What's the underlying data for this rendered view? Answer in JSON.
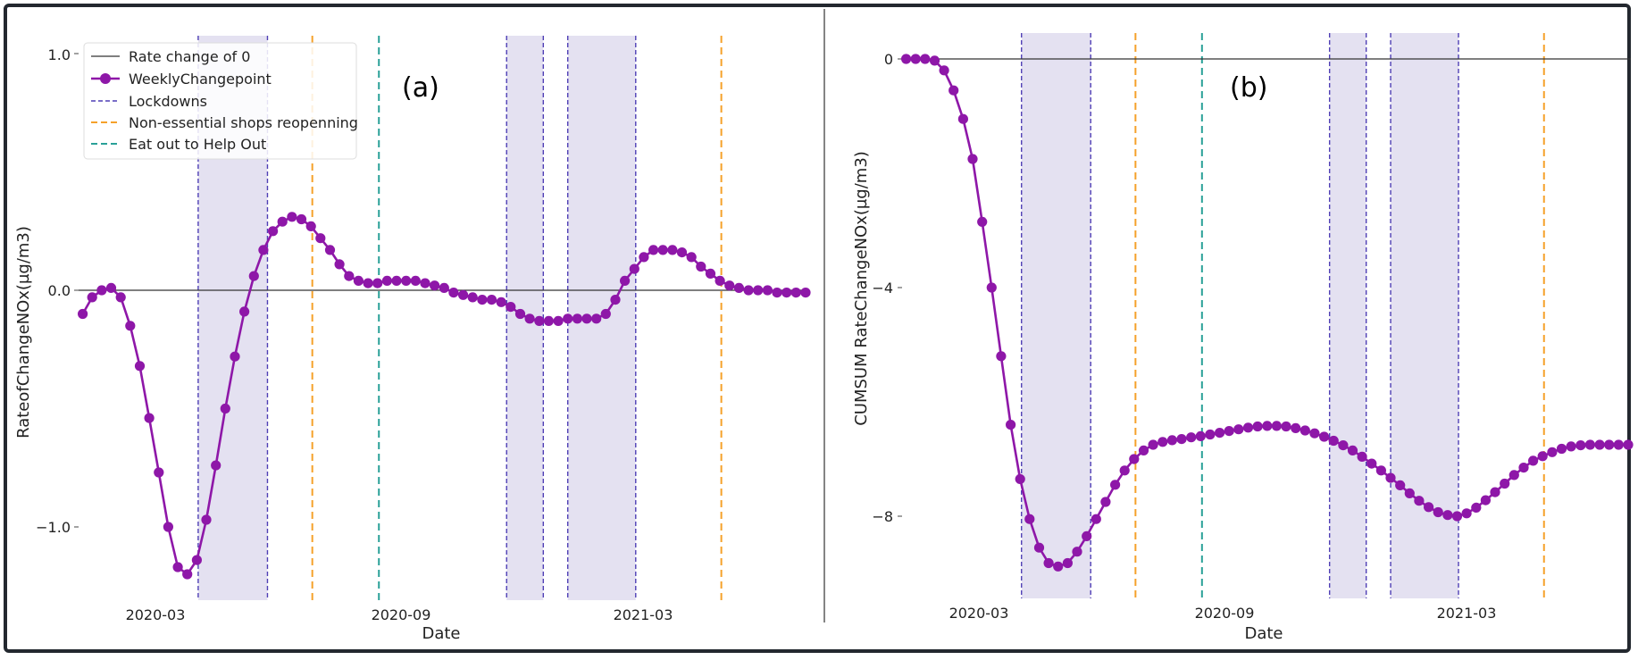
{
  "colors": {
    "series": "#8e17a8",
    "lockdown_line": "#4f3fb5",
    "lockdown_fill": "#e4e1f1",
    "shops_line": "#f5a12a",
    "eat_out_line": "#2aa198",
    "zero_line": "#333333"
  },
  "legend": {
    "items": [
      {
        "label": "Rate change of 0",
        "kind": "solid"
      },
      {
        "label": "WeeklyChangepoint",
        "kind": "marker"
      },
      {
        "label": "Lockdowns",
        "kind": "dash_lockdown"
      },
      {
        "label": "Non-essential shops reopenning",
        "kind": "dash_shops"
      },
      {
        "label": "Eat out to Help Out",
        "kind": "dash_eatout"
      }
    ],
    "placement": "top-left of panel (a)"
  },
  "chart_data": [
    {
      "type": "line",
      "panel_label": "(a)",
      "xlabel": "Date",
      "ylabel": "RateofChangeNOx(µg/m3)",
      "x_ticks": [
        "2020-03",
        "2020-09",
        "2021-03"
      ],
      "y_ticks": [
        "1.0",
        "0.0",
        "−1.0"
      ],
      "y_tick_values": [
        1.0,
        0.0,
        -1.0
      ],
      "xlim": [
        "2019-12-26",
        "2021-06-15"
      ],
      "ylim": [
        -1.3,
        1.05
      ],
      "grid": false,
      "reference_lines": {
        "y": 0
      },
      "lockdowns": [
        [
          "2020-03-23",
          "2020-05-13"
        ],
        [
          "2020-11-05",
          "2020-12-02"
        ],
        [
          "2020-12-20",
          "2021-02-08"
        ]
      ],
      "shops_reopening": [
        "2020-06-15",
        "2021-04-12"
      ],
      "eat_out": [
        "2020-08-03"
      ],
      "series": [
        {
          "name": "WeeklyChangepoint",
          "x": [
            "2019-12-29",
            "2020-01-05",
            "2020-01-12",
            "2020-01-19",
            "2020-01-26",
            "2020-02-02",
            "2020-02-09",
            "2020-02-16",
            "2020-02-23",
            "2020-03-01",
            "2020-03-08",
            "2020-03-15",
            "2020-03-22",
            "2020-03-29",
            "2020-04-05",
            "2020-04-12",
            "2020-04-19",
            "2020-04-26",
            "2020-05-03",
            "2020-05-10",
            "2020-05-17",
            "2020-05-24",
            "2020-05-31",
            "2020-06-07",
            "2020-06-14",
            "2020-06-21",
            "2020-06-28",
            "2020-07-05",
            "2020-07-12",
            "2020-07-19",
            "2020-07-26",
            "2020-08-02",
            "2020-08-09",
            "2020-08-16",
            "2020-08-23",
            "2020-08-30",
            "2020-09-06",
            "2020-09-13",
            "2020-09-20",
            "2020-09-27",
            "2020-10-04",
            "2020-10-11",
            "2020-10-18",
            "2020-10-25",
            "2020-11-01",
            "2020-11-08",
            "2020-11-15",
            "2020-11-22",
            "2020-11-29",
            "2020-12-06",
            "2020-12-13",
            "2020-12-20",
            "2020-12-27",
            "2021-01-03",
            "2021-01-10",
            "2021-01-17",
            "2021-01-24",
            "2021-01-31",
            "2021-02-07",
            "2021-02-14",
            "2021-02-21",
            "2021-02-28",
            "2021-03-07",
            "2021-03-14",
            "2021-03-21",
            "2021-03-28",
            "2021-04-04",
            "2021-04-11",
            "2021-04-18",
            "2021-04-25",
            "2021-05-02",
            "2021-05-09",
            "2021-05-16",
            "2021-05-23",
            "2021-05-30",
            "2021-06-06",
            "2021-06-13"
          ],
          "values": [
            -0.1,
            -0.03,
            0.0,
            0.01,
            -0.03,
            -0.15,
            -0.32,
            -0.54,
            -0.77,
            -1.0,
            -1.17,
            -1.2,
            -1.14,
            -0.97,
            -0.74,
            -0.5,
            -0.28,
            -0.09,
            0.06,
            0.17,
            0.25,
            0.29,
            0.31,
            0.3,
            0.27,
            0.22,
            0.17,
            0.11,
            0.06,
            0.04,
            0.03,
            0.03,
            0.04,
            0.04,
            0.04,
            0.04,
            0.03,
            0.02,
            0.01,
            -0.01,
            -0.02,
            -0.03,
            -0.04,
            -0.04,
            -0.05,
            -0.07,
            -0.1,
            -0.12,
            -0.13,
            -0.13,
            -0.13,
            -0.12,
            -0.12,
            -0.12,
            -0.12,
            -0.1,
            -0.04,
            0.04,
            0.09,
            0.14,
            0.17,
            0.17,
            0.17,
            0.16,
            0.14,
            0.1,
            0.07,
            0.04,
            0.02,
            0.01,
            0.0,
            0.0,
            0.0,
            -0.01,
            -0.01,
            -0.01,
            -0.01
          ]
        }
      ]
    },
    {
      "type": "line",
      "panel_label": "(b)",
      "xlabel": "Date",
      "ylabel": "CUMSUM RateChangeNOx(µg/m3)",
      "x_ticks": [
        "2020-03",
        "2020-09",
        "2021-03"
      ],
      "y_ticks": [
        "0",
        "−4",
        "−8"
      ],
      "y_tick_values": [
        0,
        -4,
        -8
      ],
      "xlim": [
        "2019-12-26",
        "2021-06-15"
      ],
      "ylim": [
        -9.25,
        0.45
      ],
      "grid": false,
      "reference_lines": {
        "y": 0
      },
      "lockdowns": [
        [
          "2020-03-23",
          "2020-05-13"
        ],
        [
          "2020-11-05",
          "2020-12-02"
        ],
        [
          "2020-12-20",
          "2021-02-08"
        ]
      ],
      "shops_reopening": [
        "2020-06-15",
        "2021-04-12"
      ],
      "eat_out": [
        "2020-08-03"
      ],
      "series": [
        {
          "name": "WeeklyChangepoint",
          "x": [
            "2019-12-29",
            "2020-01-05",
            "2020-01-12",
            "2020-01-19",
            "2020-01-26",
            "2020-02-02",
            "2020-02-09",
            "2020-02-16",
            "2020-02-23",
            "2020-03-01",
            "2020-03-08",
            "2020-03-15",
            "2020-03-22",
            "2020-03-29",
            "2020-04-05",
            "2020-04-12",
            "2020-04-19",
            "2020-04-26",
            "2020-05-03",
            "2020-05-10",
            "2020-05-17",
            "2020-05-24",
            "2020-05-31",
            "2020-06-07",
            "2020-06-14",
            "2020-06-21",
            "2020-06-28",
            "2020-07-05",
            "2020-07-12",
            "2020-07-19",
            "2020-07-26",
            "2020-08-02",
            "2020-08-09",
            "2020-08-16",
            "2020-08-23",
            "2020-08-30",
            "2020-09-06",
            "2020-09-13",
            "2020-09-20",
            "2020-09-27",
            "2020-10-04",
            "2020-10-11",
            "2020-10-18",
            "2020-10-25",
            "2020-11-01",
            "2020-11-08",
            "2020-11-15",
            "2020-11-22",
            "2020-11-29",
            "2020-12-06",
            "2020-12-13",
            "2020-12-20",
            "2020-12-27",
            "2021-01-03",
            "2021-01-10",
            "2021-01-17",
            "2021-01-24",
            "2021-01-31",
            "2021-02-07",
            "2021-02-14",
            "2021-02-21",
            "2021-02-28",
            "2021-03-07",
            "2021-03-14",
            "2021-03-21",
            "2021-03-28",
            "2021-04-04",
            "2021-04-11",
            "2021-04-18",
            "2021-04-25",
            "2021-05-02",
            "2021-05-09",
            "2021-05-16",
            "2021-05-23",
            "2021-05-30",
            "2021-06-06",
            "2021-06-13"
          ],
          "values": [
            0.0,
            0.0,
            0.0,
            -0.03,
            -0.2,
            -0.55,
            -1.05,
            -1.75,
            -2.85,
            -4.0,
            -5.2,
            -6.4,
            -7.35,
            -8.05,
            -8.55,
            -8.82,
            -8.88,
            -8.82,
            -8.62,
            -8.35,
            -8.05,
            -7.75,
            -7.45,
            -7.2,
            -7.0,
            -6.85,
            -6.75,
            -6.7,
            -6.67,
            -6.65,
            -6.62,
            -6.6,
            -6.57,
            -6.54,
            -6.51,
            -6.48,
            -6.45,
            -6.43,
            -6.42,
            -6.42,
            -6.43,
            -6.46,
            -6.5,
            -6.55,
            -6.61,
            -6.68,
            -6.76,
            -6.85,
            -6.96,
            -7.08,
            -7.2,
            -7.33,
            -7.46,
            -7.6,
            -7.73,
            -7.84,
            -7.93,
            -7.98,
            -8.0,
            -7.95,
            -7.85,
            -7.72,
            -7.58,
            -7.43,
            -7.28,
            -7.15,
            -7.03,
            -6.95,
            -6.88,
            -6.82,
            -6.78,
            -6.76,
            -6.75,
            -6.75,
            -6.75,
            -6.75,
            -6.75
          ]
        }
      ]
    }
  ]
}
